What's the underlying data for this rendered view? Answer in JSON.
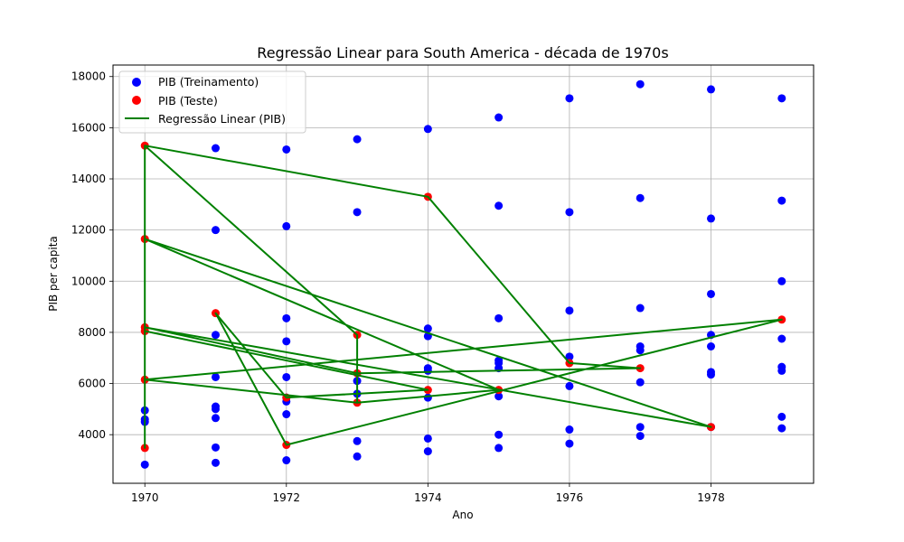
{
  "chart_data": {
    "type": "scatter",
    "title": "Regressão Linear para South America - década de 1970s",
    "xlabel": "Ano",
    "ylabel": "PIB per capita",
    "xlim": [
      1969.55,
      1979.45
    ],
    "ylim": [
      2100,
      18450
    ],
    "xticks": [
      1970,
      1972,
      1974,
      1976,
      1978
    ],
    "yticks": [
      4000,
      6000,
      8000,
      10000,
      12000,
      14000,
      16000,
      18000
    ],
    "grid": true,
    "legend_position": "top-left",
    "colors": {
      "train": "#0000ff",
      "test": "#ff0000",
      "regression": "#008000",
      "grid": "#b0b0b0"
    },
    "series": [
      {
        "name": "PIB (Treinamento)",
        "kind": "scatter",
        "points": [
          [
            1970,
            2830
          ],
          [
            1970,
            4500
          ],
          [
            1970,
            4600
          ],
          [
            1970,
            4950
          ],
          [
            1971,
            2900
          ],
          [
            1971,
            3500
          ],
          [
            1971,
            4650
          ],
          [
            1971,
            5000
          ],
          [
            1971,
            5100
          ],
          [
            1971,
            6250
          ],
          [
            1971,
            7900
          ],
          [
            1971,
            12000
          ],
          [
            1971,
            15200
          ],
          [
            1972,
            3000
          ],
          [
            1972,
            4800
          ],
          [
            1972,
            5300
          ],
          [
            1972,
            5450
          ],
          [
            1972,
            6250
          ],
          [
            1972,
            7650
          ],
          [
            1972,
            8550
          ],
          [
            1972,
            12150
          ],
          [
            1972,
            15150
          ],
          [
            1973,
            3150
          ],
          [
            1973,
            3750
          ],
          [
            1973,
            5600
          ],
          [
            1973,
            6100
          ],
          [
            1973,
            12700
          ],
          [
            1973,
            15550
          ],
          [
            1974,
            3350
          ],
          [
            1974,
            3850
          ],
          [
            1974,
            5450
          ],
          [
            1974,
            6500
          ],
          [
            1974,
            6600
          ],
          [
            1974,
            7850
          ],
          [
            1974,
            8150
          ],
          [
            1974,
            15950
          ],
          [
            1975,
            3480
          ],
          [
            1975,
            4000
          ],
          [
            1975,
            5500
          ],
          [
            1975,
            6600
          ],
          [
            1975,
            6800
          ],
          [
            1975,
            6900
          ],
          [
            1975,
            8550
          ],
          [
            1975,
            12950
          ],
          [
            1975,
            16400
          ],
          [
            1976,
            3650
          ],
          [
            1976,
            4200
          ],
          [
            1976,
            5900
          ],
          [
            1976,
            7050
          ],
          [
            1976,
            8850
          ],
          [
            1976,
            12700
          ],
          [
            1976,
            17150
          ],
          [
            1977,
            3950
          ],
          [
            1977,
            4300
          ],
          [
            1977,
            6050
          ],
          [
            1977,
            7300
          ],
          [
            1977,
            7450
          ],
          [
            1977,
            8950
          ],
          [
            1977,
            13250
          ],
          [
            1977,
            17700
          ],
          [
            1978,
            4300
          ],
          [
            1978,
            6350
          ],
          [
            1978,
            6450
          ],
          [
            1978,
            7450
          ],
          [
            1978,
            7900
          ],
          [
            1978,
            9500
          ],
          [
            1978,
            12450
          ],
          [
            1978,
            17500
          ],
          [
            1979,
            4250
          ],
          [
            1979,
            4700
          ],
          [
            1979,
            6500
          ],
          [
            1979,
            6650
          ],
          [
            1979,
            7750
          ],
          [
            1979,
            10000
          ],
          [
            1979,
            13150
          ],
          [
            1979,
            17150
          ]
        ]
      },
      {
        "name": "PIB (Teste)",
        "kind": "scatter",
        "points": [
          [
            1970,
            15300
          ],
          [
            1970,
            11650
          ],
          [
            1970,
            8200
          ],
          [
            1970,
            8050
          ],
          [
            1970,
            6150
          ],
          [
            1970,
            3480
          ],
          [
            1971,
            8750
          ],
          [
            1972,
            3600
          ],
          [
            1972,
            5450
          ],
          [
            1973,
            7900
          ],
          [
            1973,
            6400
          ],
          [
            1973,
            5250
          ],
          [
            1974,
            13300
          ],
          [
            1974,
            5750
          ],
          [
            1975,
            5750
          ],
          [
            1976,
            6800
          ],
          [
            1977,
            6600
          ],
          [
            1978,
            4300
          ],
          [
            1979,
            8500
          ]
        ]
      },
      {
        "name": "Regressão Linear (PIB)",
        "kind": "line",
        "points": [
          [
            1970,
            15300
          ],
          [
            1974,
            13300
          ],
          [
            1976,
            6800
          ],
          [
            1977,
            6600
          ],
          [
            1973,
            6400
          ],
          [
            1970,
            8200
          ],
          [
            1978,
            4300
          ],
          [
            1970,
            11650
          ],
          [
            1975,
            5750
          ],
          [
            1973,
            5250
          ],
          [
            1970,
            6150
          ],
          [
            1979,
            8500
          ],
          [
            1972,
            3600
          ],
          [
            1971,
            8750
          ],
          [
            1972,
            5450
          ],
          [
            1974,
            5750
          ],
          [
            1970,
            8050
          ],
          [
            1970,
            3480
          ],
          [
            1970,
            15300
          ],
          [
            1973,
            7900
          ],
          [
            1973,
            5250
          ]
        ]
      }
    ]
  }
}
